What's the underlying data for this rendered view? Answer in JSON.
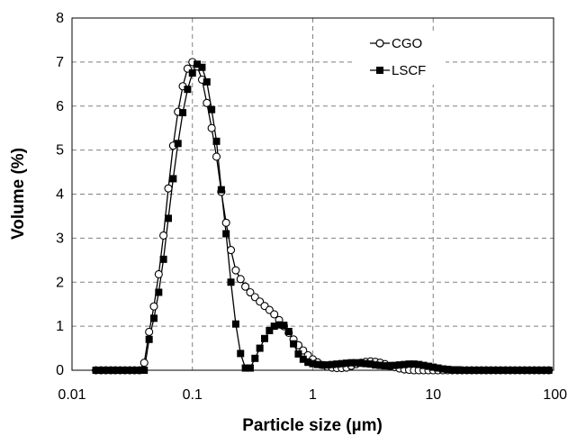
{
  "chart_data": {
    "type": "line",
    "xlabel": "Particle size (µm)",
    "ylabel": "Volume (%)",
    "xscale": "log",
    "xlim": [
      0.01,
      100
    ],
    "ylim": [
      0,
      8
    ],
    "x_ticks": [
      "0.01",
      "0.1",
      "1",
      "10",
      "100"
    ],
    "y_ticks": [
      "0",
      "1",
      "2",
      "3",
      "4",
      "5",
      "6",
      "7",
      "8"
    ],
    "grid": "dashed",
    "legend_position": "top-right",
    "series": [
      {
        "name": "CGO",
        "marker": "open-circle",
        "color": "#000000",
        "x": [
          0.0158,
          0.0174,
          0.0191,
          0.021,
          0.0229,
          0.0251,
          0.0275,
          0.0302,
          0.0331,
          0.0363,
          0.0398,
          0.0437,
          0.0479,
          0.0525,
          0.0575,
          0.0631,
          0.0692,
          0.0759,
          0.0832,
          0.0912,
          0.1,
          0.1096,
          0.1202,
          0.1318,
          0.1445,
          0.1585,
          0.1738,
          0.1905,
          0.2089,
          0.2291,
          0.2512,
          0.2754,
          0.302,
          0.3311,
          0.3631,
          0.3981,
          0.4365,
          0.4786,
          0.5248,
          0.5754,
          0.631,
          0.6918,
          0.7586,
          0.8318,
          0.912,
          1,
          1.096,
          1.202,
          1.318,
          1.445,
          1.585,
          1.738,
          1.905,
          2.089,
          2.291,
          2.512,
          2.754,
          3.02,
          3.311,
          3.631,
          3.981,
          4.365,
          4.786,
          5.248,
          5.754,
          6.31,
          6.918,
          7.586,
          8.318,
          9.12,
          10,
          10.96,
          12.02,
          13.18,
          14.45,
          15.85,
          17.38,
          19.05,
          20.89,
          22.91,
          25.12,
          27.54,
          30.2,
          33.11,
          36.31,
          39.81,
          43.65,
          47.86,
          52.48,
          57.54,
          63.1,
          69.18,
          75.86,
          83.18,
          91.2
        ],
        "y": [
          0,
          0,
          0,
          0,
          0,
          0,
          0,
          0,
          0,
          0,
          0.17,
          0.87,
          1.45,
          2.18,
          3.06,
          4.13,
          5.1,
          5.87,
          6.45,
          6.85,
          7.0,
          6.9,
          6.6,
          6.07,
          5.5,
          4.85,
          4.05,
          3.35,
          2.73,
          2.27,
          2.07,
          1.9,
          1.77,
          1.66,
          1.56,
          1.46,
          1.37,
          1.27,
          1.14,
          1.0,
          0.85,
          0.7,
          0.57,
          0.45,
          0.34,
          0.25,
          0.18,
          0.12,
          0.08,
          0.06,
          0.05,
          0.05,
          0.06,
          0.1,
          0.14,
          0.17,
          0.19,
          0.2,
          0.19,
          0.17,
          0.14,
          0.1,
          0.07,
          0.04,
          0.02,
          0.01,
          0,
          0,
          0,
          0,
          0,
          0,
          0,
          0,
          0,
          0,
          0,
          0,
          0,
          0,
          0,
          0,
          0,
          0,
          0,
          0,
          0,
          0,
          0,
          0,
          0,
          0,
          0,
          0,
          0
        ]
      },
      {
        "name": "LSCF",
        "marker": "filled-square",
        "color": "#000000",
        "x": [
          0.0158,
          0.0174,
          0.0191,
          0.021,
          0.0229,
          0.0251,
          0.0275,
          0.0302,
          0.0331,
          0.0363,
          0.0398,
          0.0437,
          0.0479,
          0.0525,
          0.0575,
          0.0631,
          0.0692,
          0.0759,
          0.0832,
          0.0912,
          0.1,
          0.1096,
          0.1202,
          0.1318,
          0.1445,
          0.1585,
          0.1738,
          0.1905,
          0.2089,
          0.2291,
          0.2512,
          0.2754,
          0.302,
          0.3311,
          0.3631,
          0.3981,
          0.4365,
          0.4786,
          0.5248,
          0.5754,
          0.631,
          0.6918,
          0.7586,
          0.8318,
          0.912,
          1,
          1.096,
          1.202,
          1.318,
          1.445,
          1.585,
          1.738,
          1.905,
          2.089,
          2.291,
          2.512,
          2.754,
          3.02,
          3.311,
          3.631,
          3.981,
          4.365,
          4.786,
          5.248,
          5.754,
          6.31,
          6.918,
          7.586,
          8.318,
          9.12,
          10,
          10.96,
          12.02,
          13.18,
          14.45,
          15.85,
          17.38,
          19.05,
          20.89,
          22.91,
          25.12,
          27.54,
          30.2,
          33.11,
          36.31,
          39.81,
          43.65,
          47.86,
          52.48,
          57.54,
          63.1,
          69.18,
          75.86,
          83.18,
          91.2
        ],
        "y": [
          0,
          0,
          0,
          0,
          0,
          0,
          0,
          0,
          0,
          0,
          0,
          0.7,
          1.18,
          1.77,
          2.52,
          3.45,
          4.35,
          5.15,
          5.85,
          6.38,
          6.75,
          6.95,
          6.88,
          6.55,
          5.92,
          5.2,
          4.1,
          3.1,
          2.0,
          1.05,
          0.38,
          0.05,
          0.05,
          0.27,
          0.5,
          0.72,
          0.9,
          1.0,
          1.03,
          1.02,
          0.88,
          0.6,
          0.37,
          0.25,
          0.18,
          0.15,
          0.13,
          0.12,
          0.12,
          0.13,
          0.14,
          0.15,
          0.16,
          0.17,
          0.17,
          0.16,
          0.15,
          0.14,
          0.12,
          0.11,
          0.1,
          0.1,
          0.11,
          0.12,
          0.13,
          0.14,
          0.14,
          0.13,
          0.11,
          0.09,
          0.07,
          0.05,
          0.03,
          0.02,
          0.01,
          0.01,
          0,
          0,
          0,
          0,
          0,
          0,
          0,
          0,
          0,
          0,
          0,
          0,
          0,
          0,
          0,
          0,
          0,
          0,
          0
        ]
      }
    ]
  }
}
